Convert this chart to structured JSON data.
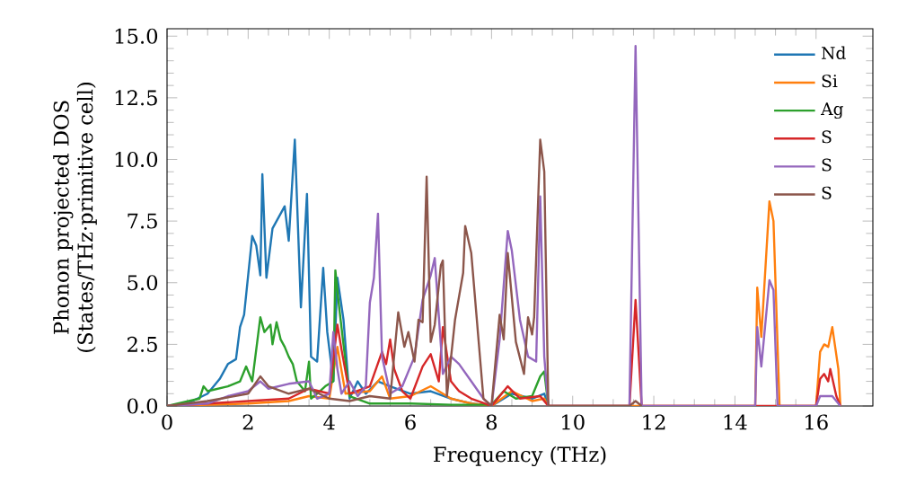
{
  "chart_data": {
    "type": "line",
    "xlabel": "Frequency (THz)",
    "ylabel": "Phonon projected DOS\n(States/THz·primitive cell)",
    "xlim": [
      0,
      17.4
    ],
    "ylim": [
      0,
      15.3
    ],
    "xticks": [
      0,
      2,
      4,
      6,
      8,
      10,
      12,
      14,
      16
    ],
    "yticks": [
      {
        "value": 0,
        "label": "0.0"
      },
      {
        "value": 2.5,
        "label": "2.5"
      },
      {
        "value": 5,
        "label": "5.0"
      },
      {
        "value": 7.5,
        "label": "7.5"
      },
      {
        "value": 10,
        "label": "10.0"
      },
      {
        "value": 12.5,
        "label": "12.5"
      },
      {
        "value": 15,
        "label": "15.0"
      }
    ],
    "grid": false,
    "legend": "top right",
    "marker": "none",
    "line_style": "solid",
    "series": [
      {
        "name": "Nd",
        "color": "#1f77b4",
        "x": [
          0,
          0.5,
          1,
          1.3,
          1.5,
          1.7,
          1.8,
          1.9,
          2.1,
          2.2,
          2.3,
          2.35,
          2.45,
          2.6,
          2.8,
          2.9,
          3.0,
          3.15,
          3.3,
          3.45,
          3.55,
          3.7,
          3.85,
          3.95,
          4.1,
          4.2,
          4.35,
          4.5,
          4.7,
          4.9,
          5.2,
          5.5,
          6,
          6.5,
          7,
          7.5,
          8,
          8.5,
          9,
          9.3,
          9.4
        ],
        "values": [
          0,
          0.1,
          0.5,
          1.1,
          1.7,
          1.9,
          3.2,
          3.7,
          6.9,
          6.5,
          5.3,
          9.4,
          5.2,
          7.2,
          7.8,
          8.1,
          6.7,
          10.8,
          4.0,
          8.6,
          2.0,
          1.8,
          5.6,
          3.0,
          1.0,
          5.2,
          3.5,
          0.3,
          1.0,
          0.5,
          1.0,
          0.8,
          0.5,
          0.6,
          0.3,
          0.1,
          0,
          0.5,
          0.3,
          0.5,
          0
        ]
      },
      {
        "name": "Si",
        "color": "#ff7f0e",
        "x": [
          0,
          2,
          3,
          3.5,
          4,
          4.2,
          4.4,
          5,
          5.3,
          5.5,
          6,
          6.5,
          7,
          7.5,
          8,
          8.5,
          9,
          9.3,
          9.4,
          14.5,
          14.55,
          14.65,
          14.85,
          14.95,
          15.1,
          16.0,
          16.1,
          16.2,
          16.3,
          16.4,
          16.55,
          16.6
        ],
        "values": [
          0,
          0.1,
          0.2,
          0.4,
          0.3,
          2.4,
          0.5,
          0.6,
          1.2,
          0.3,
          0.4,
          0.8,
          0.3,
          0.1,
          0,
          0.6,
          0.2,
          0.3,
          0,
          0,
          4.8,
          2.8,
          8.3,
          7.5,
          0,
          0,
          2.2,
          2.5,
          2.4,
          3.2,
          1.5,
          0
        ]
      },
      {
        "name": "Ag",
        "color": "#2ca02c",
        "x": [
          0,
          0.8,
          0.9,
          1,
          1.5,
          1.8,
          1.95,
          2.1,
          2.3,
          2.4,
          2.55,
          2.6,
          2.7,
          2.8,
          2.9,
          3.0,
          3.1,
          3.2,
          3.4,
          3.5,
          3.55,
          3.7,
          3.9,
          4.1,
          4.15,
          4.25,
          4.5,
          5,
          6,
          7,
          8,
          8.3,
          8.6,
          9,
          9.2,
          9.3,
          9.4
        ],
        "values": [
          0,
          0.3,
          0.8,
          0.6,
          0.8,
          1.0,
          1.6,
          1.0,
          3.6,
          3.0,
          3.3,
          2.5,
          3.4,
          2.7,
          2.4,
          2.0,
          1.7,
          1.0,
          0.6,
          1.8,
          0.3,
          0.5,
          0.8,
          1.0,
          5.5,
          3.9,
          0.4,
          0.1,
          0.1,
          0.05,
          0.05,
          0.6,
          0.3,
          0.4,
          1.2,
          1.4,
          0
        ]
      },
      {
        "name": "S",
        "color": "#d62728",
        "x": [
          0,
          2,
          3,
          3.5,
          4,
          4.2,
          4.3,
          4.5,
          5,
          5.3,
          5.4,
          5.5,
          5.6,
          5.8,
          6,
          6.3,
          6.5,
          6.7,
          6.8,
          7,
          7.2,
          7.5,
          8,
          8.4,
          8.7,
          9.2,
          9.4,
          11.4,
          11.55,
          11.7,
          16.0,
          16.1,
          16.2,
          16.3,
          16.35,
          16.5,
          16.6
        ],
        "values": [
          0,
          0.2,
          0.3,
          0.7,
          0.5,
          3.3,
          2.3,
          0.5,
          0.8,
          2.2,
          1.7,
          2.7,
          1.5,
          0.6,
          0.3,
          1.6,
          2.1,
          1.0,
          3.2,
          1.0,
          0.6,
          0.3,
          0,
          0.8,
          0.3,
          0.4,
          0,
          0,
          4.3,
          0,
          0,
          1.1,
          1.3,
          1.0,
          1.5,
          0.4,
          0
        ]
      },
      {
        "name": "S",
        "color": "#9467bd",
        "x": [
          0,
          1,
          1.5,
          2,
          2.3,
          2.5,
          3,
          3.5,
          3.7,
          4,
          4.1,
          4.2,
          4.3,
          4.5,
          4.7,
          4.9,
          5.0,
          5.1,
          5.2,
          5.3,
          5.5,
          5.8,
          6.1,
          6.3,
          6.5,
          6.6,
          6.8,
          7.0,
          7.2,
          7.5,
          7.8,
          8,
          8.2,
          8.4,
          8.5,
          8.7,
          8.9,
          9.1,
          9.2,
          9.3,
          9.4,
          11.4,
          11.55,
          11.7,
          14.5,
          14.55,
          14.65,
          14.85,
          14.95,
          15.05,
          16.0,
          16.1,
          16.4,
          16.6
        ],
        "values": [
          0,
          0.1,
          0.4,
          0.6,
          1.0,
          0.7,
          0.9,
          1.0,
          0.3,
          0.5,
          3.0,
          1.5,
          0.5,
          1.0,
          0.4,
          0.8,
          4.2,
          5.2,
          7.8,
          2.0,
          0.5,
          0.8,
          2.0,
          4.3,
          5.3,
          6.0,
          1.3,
          2.0,
          1.7,
          1.0,
          0.3,
          0,
          2.7,
          7.1,
          6.3,
          3.5,
          2.0,
          1.8,
          8.5,
          2.0,
          0,
          0,
          14.6,
          0,
          0,
          3.2,
          1.6,
          5.1,
          4.7,
          0,
          0,
          0.4,
          0.4,
          0
        ]
      },
      {
        "name": "S",
        "color": "#8c564b",
        "x": [
          0,
          1,
          2,
          2.3,
          2.5,
          3,
          3.5,
          4,
          4.5,
          5,
          5.5,
          5.7,
          5.85,
          5.95,
          6.1,
          6.2,
          6.3,
          6.4,
          6.5,
          6.6,
          6.75,
          6.8,
          6.9,
          7.1,
          7.3,
          7.35,
          7.5,
          7.8,
          8,
          8.2,
          8.3,
          8.4,
          8.6,
          8.8,
          8.9,
          9.0,
          9.05,
          9.2,
          9.3,
          9.4,
          11.4,
          11.55,
          11.7
        ],
        "values": [
          0,
          0.2,
          0.5,
          1.2,
          0.8,
          0.5,
          0.7,
          0.3,
          0.2,
          0.4,
          0.3,
          3.8,
          2.4,
          3.0,
          1.8,
          3.5,
          3.4,
          9.3,
          2.6,
          3.3,
          5.7,
          5.9,
          0.4,
          3.5,
          5.4,
          7.3,
          6.2,
          0.3,
          0,
          3.7,
          2.7,
          6.2,
          2.6,
          1.3,
          3.6,
          2.9,
          3.6,
          10.8,
          9.5,
          0,
          0,
          0.2,
          0
        ]
      }
    ]
  }
}
